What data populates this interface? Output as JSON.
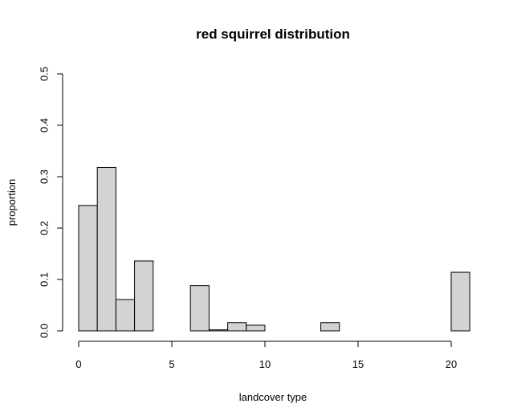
{
  "chart_data": {
    "type": "bar",
    "title": "red squirrel distribution",
    "xlabel": "landcover type",
    "ylabel": "proportion",
    "xlim": [
      0,
      21
    ],
    "ylim": [
      0,
      0.5
    ],
    "x_ticks": [
      0,
      5,
      10,
      15,
      20
    ],
    "y_ticks": [
      0.0,
      0.1,
      0.2,
      0.3,
      0.4,
      0.5
    ],
    "y_tick_labels": [
      "0.0",
      "0.1",
      "0.2",
      "0.3",
      "0.4",
      "0.5"
    ],
    "bin_edges": [
      0,
      1,
      2,
      3,
      4,
      5,
      6,
      7,
      8,
      9,
      10,
      11,
      12,
      13,
      14,
      15,
      16,
      17,
      18,
      19,
      20,
      21
    ],
    "values": [
      0.244,
      0.318,
      0.061,
      0.136,
      0,
      0,
      0.088,
      0.002,
      0.016,
      0.011,
      0,
      0,
      0,
      0.016,
      0,
      0,
      0,
      0,
      0,
      0,
      0.114
    ],
    "bar_color": "#d3d3d3",
    "grid": false
  }
}
